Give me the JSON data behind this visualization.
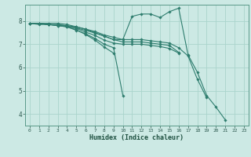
{
  "xlabel": "Humidex (Indice chaleur)",
  "ylabel": "",
  "xlim": [
    -0.5,
    23.5
  ],
  "ylim": [
    3.5,
    8.7
  ],
  "yticks": [
    4,
    5,
    6,
    7,
    8
  ],
  "xticks": [
    0,
    1,
    2,
    3,
    4,
    5,
    6,
    7,
    8,
    9,
    10,
    11,
    12,
    13,
    14,
    15,
    16,
    17,
    18,
    19,
    20,
    21,
    22,
    23
  ],
  "bg_color": "#cce9e4",
  "line_color": "#2e7d6e",
  "grid_color": "#aad4cc",
  "series": [
    [
      7.9,
      7.9,
      7.9,
      7.9,
      7.85,
      7.75,
      7.65,
      7.5,
      7.35,
      7.2,
      7.2,
      8.2,
      8.3,
      8.3,
      8.15,
      8.4,
      8.55,
      6.55,
      5.8,
      4.8,
      4.3,
      3.75,
      null,
      null
    ],
    [
      7.9,
      7.9,
      7.85,
      7.85,
      7.8,
      7.75,
      7.65,
      7.55,
      7.4,
      7.3,
      7.2,
      7.2,
      7.2,
      7.15,
      7.1,
      7.05,
      6.85,
      6.5,
      5.5,
      4.7,
      null,
      null,
      null,
      null
    ],
    [
      7.9,
      7.9,
      7.85,
      7.82,
      7.78,
      7.7,
      7.6,
      7.48,
      7.35,
      7.2,
      7.1,
      7.1,
      7.1,
      7.05,
      7.0,
      6.95,
      6.65,
      null,
      null,
      null,
      null,
      null,
      null,
      null
    ],
    [
      7.9,
      7.9,
      7.85,
      7.82,
      7.78,
      7.68,
      7.52,
      7.38,
      7.18,
      7.05,
      7.0,
      7.0,
      7.0,
      6.95,
      6.9,
      6.82,
      6.62,
      null,
      null,
      null,
      null,
      null,
      null,
      null
    ],
    [
      7.9,
      7.9,
      7.85,
      7.8,
      7.75,
      7.6,
      7.45,
      7.25,
      7.0,
      6.85,
      4.8,
      null,
      null,
      null,
      null,
      null,
      null,
      null,
      null,
      null,
      null,
      null,
      null,
      null
    ],
    [
      7.9,
      7.85,
      7.85,
      7.8,
      7.75,
      7.62,
      7.42,
      7.18,
      6.88,
      6.62,
      null,
      null,
      null,
      null,
      null,
      null,
      null,
      null,
      null,
      null,
      null,
      null,
      null,
      null
    ]
  ]
}
